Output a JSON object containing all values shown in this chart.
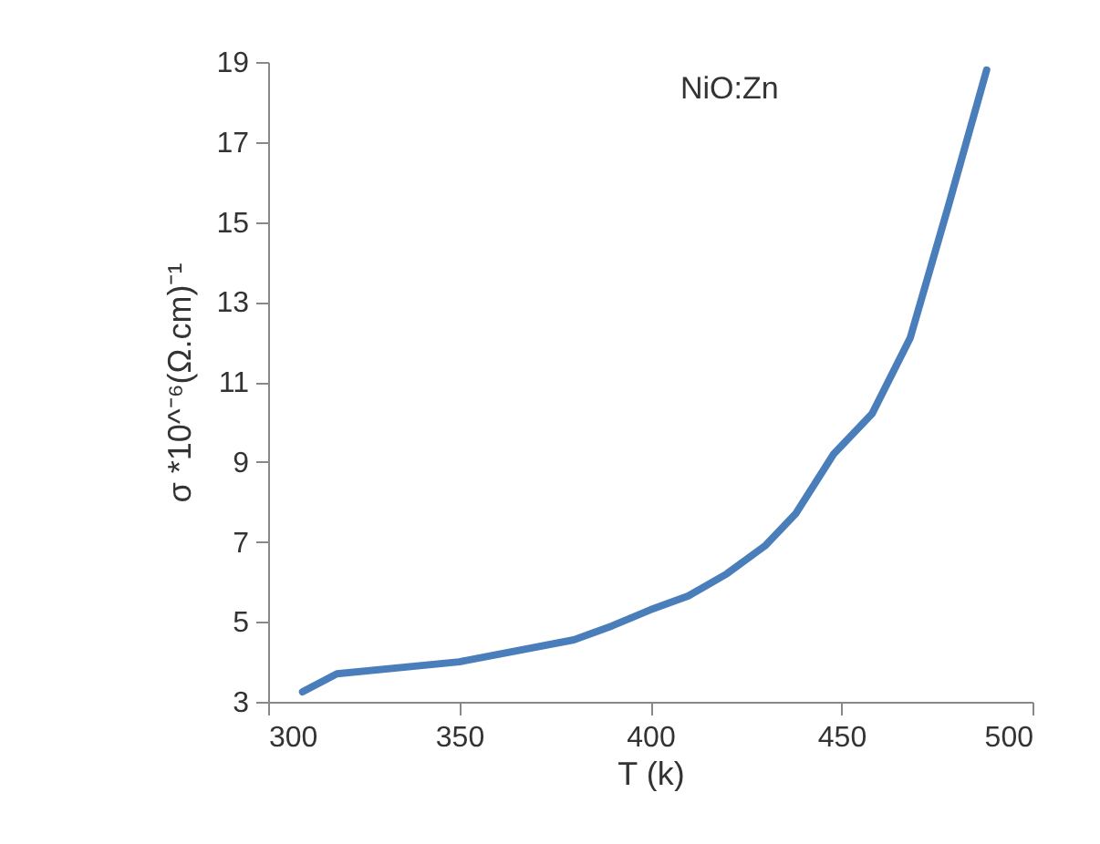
{
  "chart_data": {
    "type": "line",
    "xlabel": "T (k)",
    "ylabel": "σ *10^⁻⁶(Ω.cm)⁻¹",
    "annotations": [
      "NiO:Zn"
    ],
    "x": [
      309,
      318,
      350,
      380,
      390,
      400,
      410,
      420,
      430,
      438,
      448,
      458,
      468,
      478,
      488
    ],
    "series": [
      {
        "color": "#4a7ebb",
        "values": [
          3.25,
          3.7,
          4.0,
          4.55,
          4.9,
          5.3,
          5.65,
          6.2,
          6.9,
          7.7,
          9.2,
          10.2,
          12.1,
          15.4,
          18.8
        ]
      }
    ],
    "xlim": [
      300,
      500
    ],
    "xticks": [
      300,
      350,
      400,
      450,
      500
    ],
    "ylim": [
      3,
      19
    ],
    "yticks": [
      3,
      5,
      7,
      9,
      11,
      13,
      15,
      17,
      19
    ],
    "grid": false,
    "legend": false,
    "marker": "none",
    "line_style": "solid"
  }
}
